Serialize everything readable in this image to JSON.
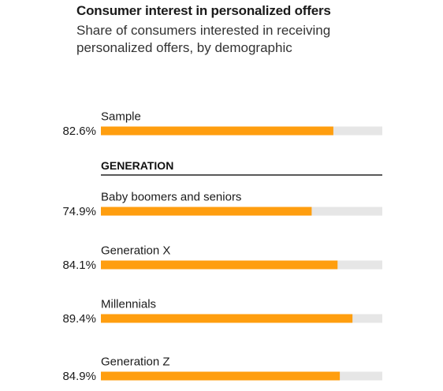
{
  "chart_data": {
    "type": "bar",
    "orientation": "horizontal",
    "title": "Consumer interest in personalized offers",
    "subtitle": "Share of consumers interested in receiving personalized offers, by demographic",
    "xlim": [
      0,
      100
    ],
    "grid": false,
    "colors": {
      "bar": "#FF9E0F",
      "track": "#E6E6E6",
      "rule": "#222222"
    },
    "categories": [
      "Sample",
      "Baby boomers and seniors",
      "Generation X",
      "Millennials",
      "Generation Z"
    ],
    "values": [
      82.6,
      74.9,
      84.1,
      89.4,
      84.9
    ],
    "value_labels": [
      "82.6%",
      "74.9%",
      "84.1%",
      "89.4%",
      "84.9%"
    ],
    "groups": [
      {
        "label": "",
        "members": [
          "Sample"
        ]
      },
      {
        "label": "GENERATION",
        "members": [
          "Baby boomers and seniors",
          "Generation X",
          "Millennials",
          "Generation Z"
        ]
      }
    ]
  }
}
